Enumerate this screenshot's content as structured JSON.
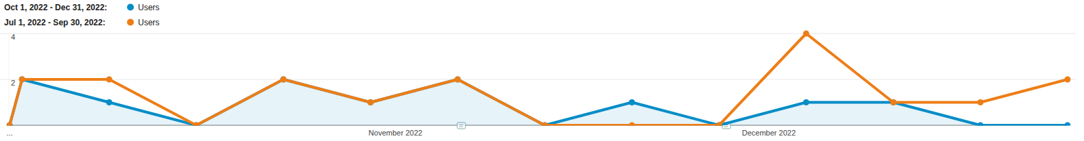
{
  "chart_data": {
    "type": "line",
    "x": [
      0,
      1,
      8,
      15,
      22,
      29,
      36,
      43,
      50,
      57,
      64,
      71,
      78,
      85
    ],
    "xlim": [
      0,
      85
    ],
    "xticks": [
      {
        "value": 0,
        "label": "..."
      },
      {
        "value": 31,
        "label": "November 2022"
      },
      {
        "value": 61,
        "label": "December 2022"
      }
    ],
    "ylim": [
      0,
      4
    ],
    "yticks": [
      2,
      4
    ],
    "grid": true,
    "legend": "top-left",
    "series": [
      {
        "period": "Oct 1, 2022 - Dec 31, 2022:",
        "name": "Users",
        "color": "#058dc7",
        "marker": "circle",
        "values": [
          0,
          2,
          1,
          0,
          2,
          1,
          2,
          0,
          1,
          0,
          1,
          1,
          0,
          0
        ]
      },
      {
        "period": "Jul 1, 2022 - Sep 30, 2022:",
        "name": "Users",
        "color": "#ed7e17",
        "marker": "circle",
        "values": [
          0,
          2,
          2,
          0,
          2,
          1,
          2,
          0,
          0,
          0,
          4,
          1,
          1,
          2
        ]
      }
    ]
  }
}
